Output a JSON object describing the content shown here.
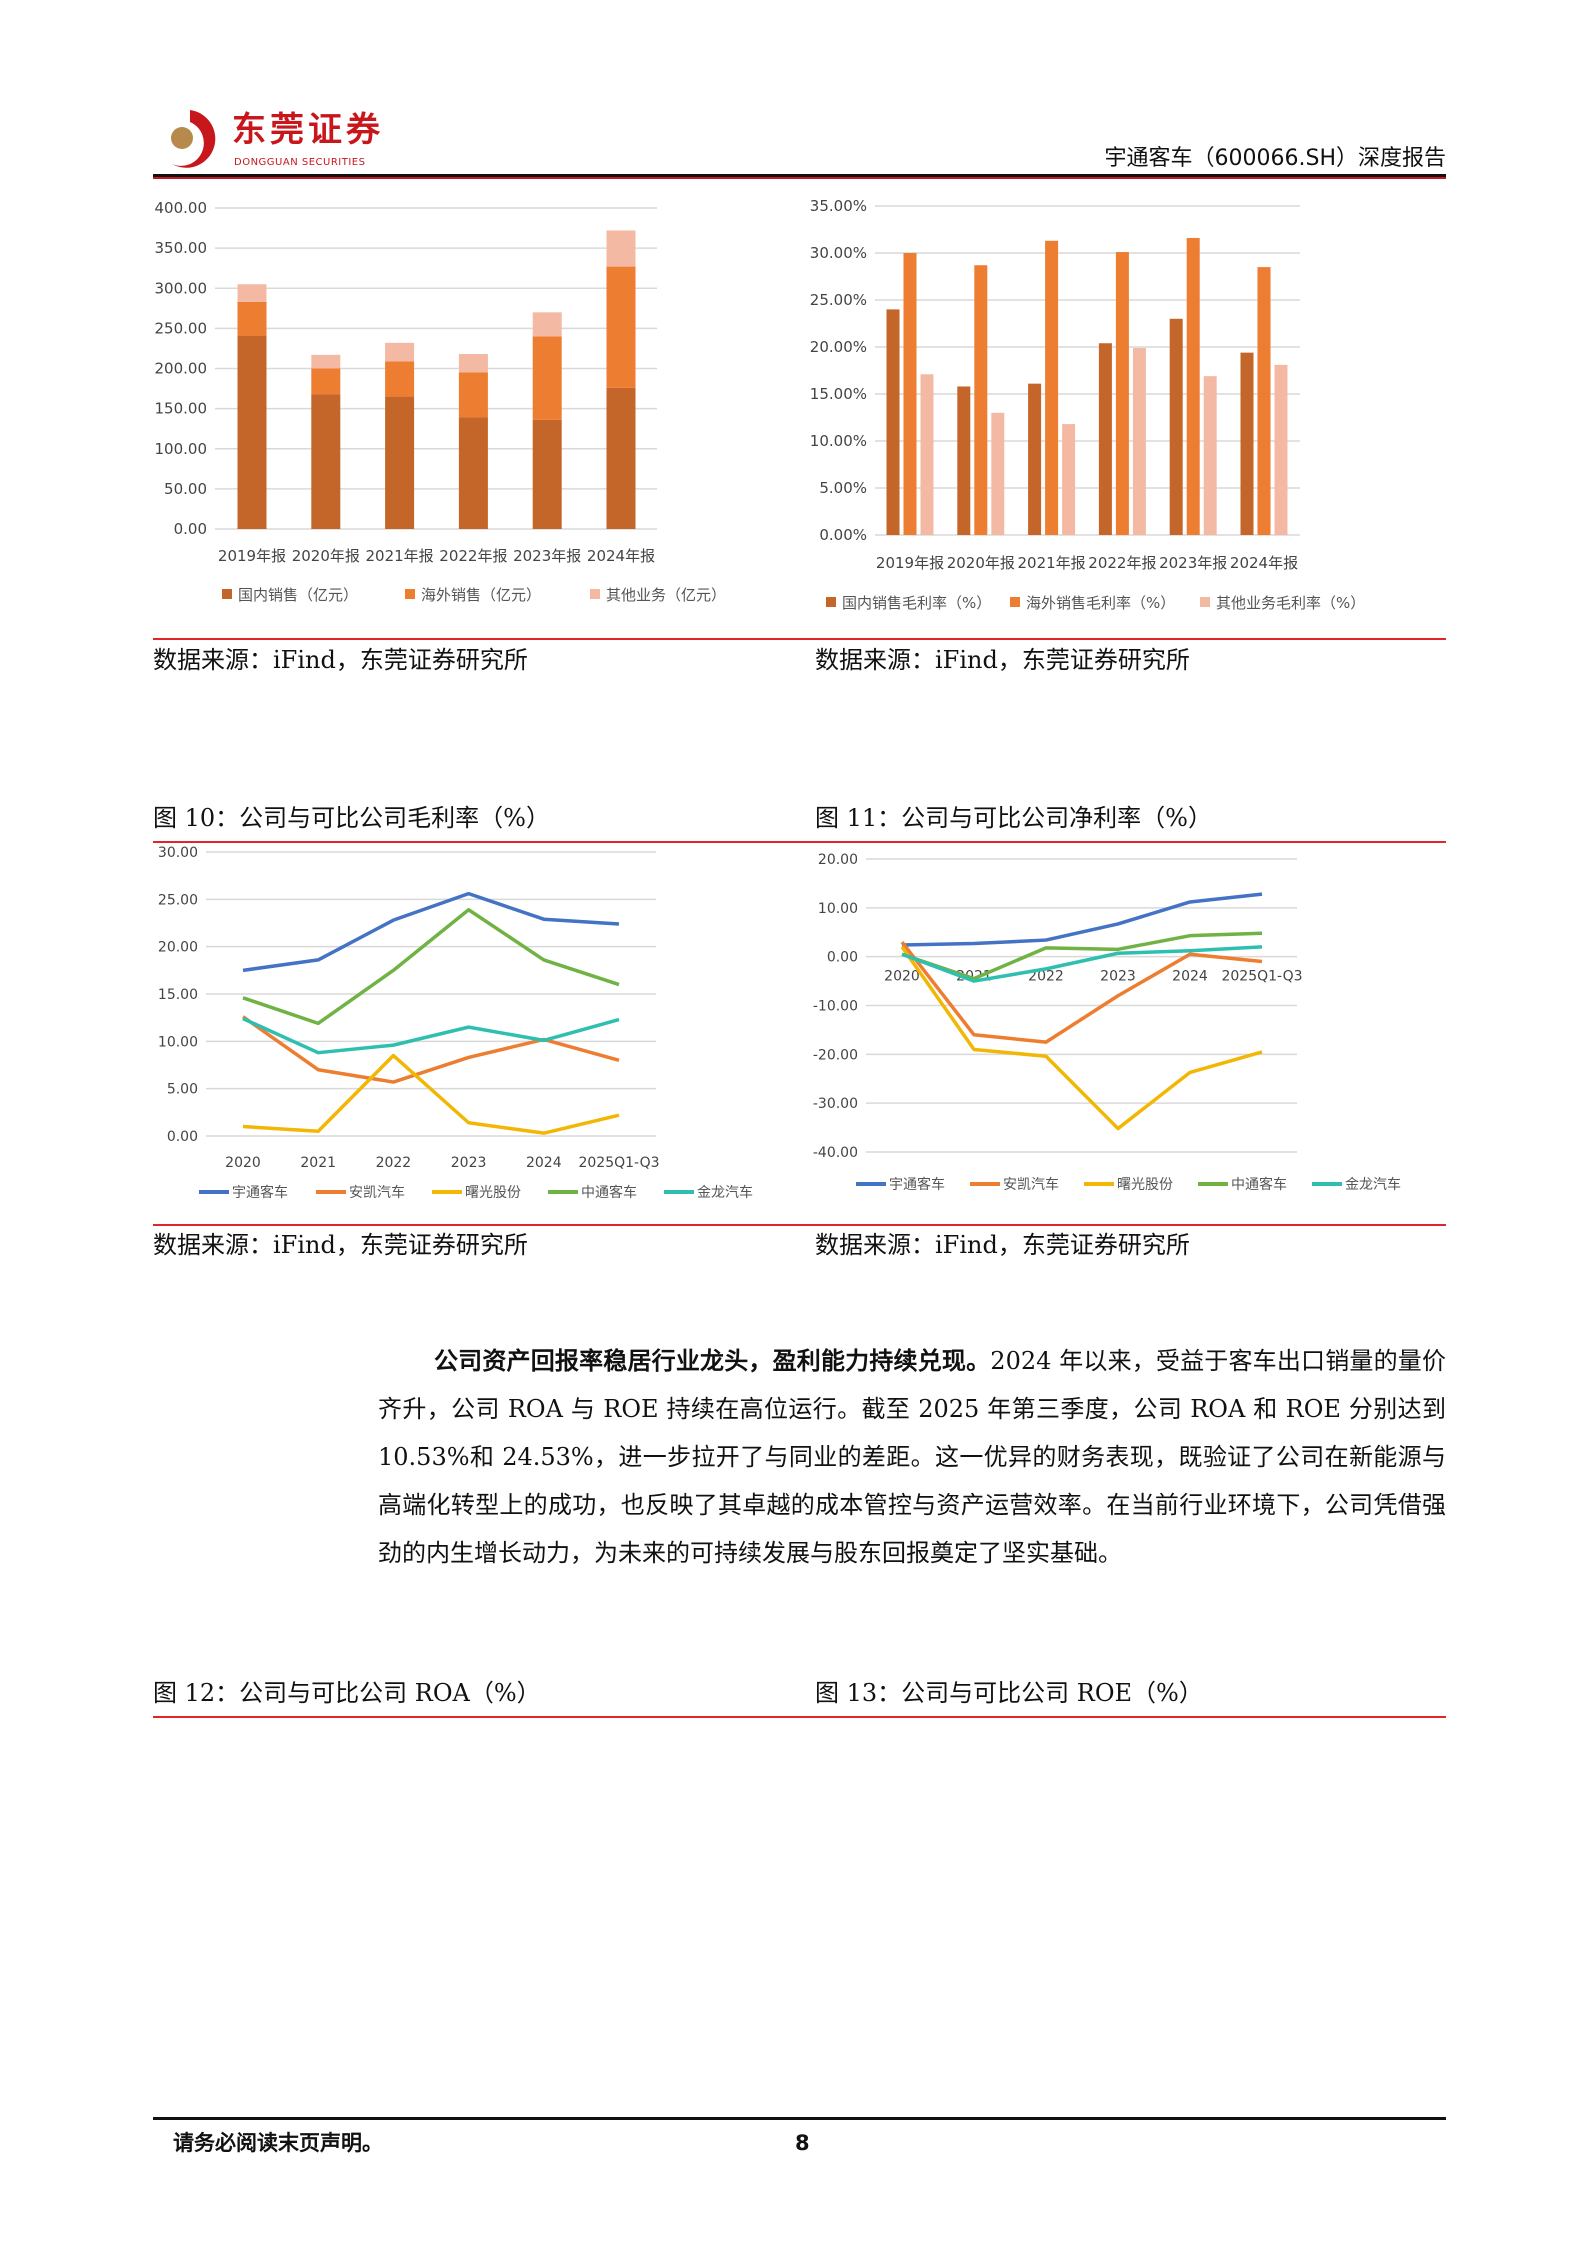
{
  "header": {
    "logo_cn": "东莞证券",
    "logo_en": "DONGGUAN SECURITIES",
    "report_title": "宇通客车（600066.SH）深度报告",
    "brand_color": "#c8161d"
  },
  "sources": {
    "left_top": "数据来源：iFind，东莞证券研究所",
    "right_top": "数据来源：iFind，东莞证券研究所",
    "left_mid": "数据来源：iFind，东莞证券研究所",
    "right_mid": "数据来源：iFind，东莞证券研究所"
  },
  "captions": {
    "fig10": "图 10：公司与可比公司毛利率（%）",
    "fig11": "图 11：公司与可比公司净利率（%）",
    "fig12": "图 12：公司与可比公司 ROA（%）",
    "fig13": "图 13：公司与可比公司 ROE（%）"
  },
  "paragraph": {
    "bold": "公司资产回报率稳居行业龙头，盈利能力持续兑现。",
    "text": "2024 年以来，受益于客车出口销量的量价齐升，公司 ROA 与 ROE 持续在高位运行。截至 2025 年第三季度，公司 ROA 和 ROE 分别达到 10.53%和 24.53%，进一步拉开了与同业的差距。这一优异的财务表现，既验证了公司在新能源与高端化转型上的成功，也反映了其卓越的成本管控与资产运营效率。在当前行业环境下，公司凭借强劲的内生增长动力，为未来的可持续发展与股东回报奠定了坚实基础。"
  },
  "footer": {
    "note": "请务必阅读末页声明。",
    "page": "8"
  },
  "chart_data": [
    {
      "type": "bar",
      "stacked": true,
      "categories": [
        "2019年报",
        "2020年报",
        "2021年报",
        "2022年报",
        "2023年报",
        "2024年报"
      ],
      "yticks": [
        "0.00",
        "50.00",
        "100.00",
        "150.00",
        "200.00",
        "250.00",
        "300.00",
        "350.00",
        "400.00"
      ],
      "ylim": [
        0,
        400
      ],
      "grid": true,
      "legend": "bottom",
      "series": [
        {
          "name": "国内销售（亿元）",
          "color": "#c4652a",
          "values": [
            241,
            168,
            165,
            139,
            136,
            176
          ]
        },
        {
          "name": "海外销售（亿元）",
          "color": "#ed7d31",
          "values": [
            42,
            32,
            44,
            56,
            104,
            151
          ]
        },
        {
          "name": "其他业务（亿元）",
          "color": "#f4b9a2",
          "values": [
            22,
            17,
            23,
            23,
            30,
            45
          ]
        }
      ]
    },
    {
      "type": "bar",
      "stacked": false,
      "categories": [
        "2019年报",
        "2020年报",
        "2021年报",
        "2022年报",
        "2023年报",
        "2024年报"
      ],
      "yticks": [
        "0.00%",
        "5.00%",
        "10.00%",
        "15.00%",
        "20.00%",
        "25.00%",
        "30.00%",
        "35.00%"
      ],
      "ylim": [
        0,
        35
      ],
      "grid": true,
      "legend": "bottom",
      "series": [
        {
          "name": "国内销售毛利率（%）",
          "color": "#c4652a",
          "values": [
            24.0,
            15.8,
            16.1,
            20.4,
            23.0,
            19.4
          ]
        },
        {
          "name": "海外销售毛利率（%）",
          "color": "#ed7d31",
          "values": [
            30.0,
            28.7,
            31.3,
            30.1,
            31.6,
            28.5
          ]
        },
        {
          "name": "其他业务毛利率（%）",
          "color": "#f4b9a2",
          "values": [
            17.1,
            13.0,
            11.8,
            19.9,
            16.9,
            18.1
          ]
        }
      ]
    },
    {
      "type": "line",
      "categories": [
        "2020",
        "2021",
        "2022",
        "2023",
        "2024",
        "2025Q1-Q3"
      ],
      "yticks": [
        "0.00",
        "5.00",
        "10.00",
        "15.00",
        "20.00",
        "25.00",
        "30.00"
      ],
      "ylim": [
        0,
        30
      ],
      "grid": true,
      "legend": "bottom",
      "series": [
        {
          "name": "宇通客车",
          "color": "#4472c4",
          "values": [
            17.5,
            18.6,
            22.8,
            25.6,
            22.9,
            22.4
          ]
        },
        {
          "name": "安凯汽车",
          "color": "#ed7d31",
          "values": [
            12.6,
            7.0,
            5.7,
            8.3,
            10.2,
            8.0
          ]
        },
        {
          "name": "曙光股份",
          "color": "#f2b705",
          "values": [
            1.0,
            0.5,
            8.5,
            1.4,
            0.3,
            2.2
          ]
        },
        {
          "name": "中通客车",
          "color": "#70b244",
          "values": [
            14.6,
            11.9,
            17.5,
            23.9,
            18.6,
            16.0
          ]
        },
        {
          "name": "金龙汽车",
          "color": "#2fbfb0",
          "values": [
            12.4,
            8.8,
            9.6,
            11.5,
            10.1,
            12.3
          ]
        }
      ]
    },
    {
      "type": "line",
      "categories": [
        "2020",
        "2021",
        "2022",
        "2023",
        "2024",
        "2025Q1-Q3"
      ],
      "yticks": [
        "-40.00",
        "-30.00",
        "-20.00",
        "-10.00",
        "0.00",
        "10.00",
        "20.00"
      ],
      "ylim": [
        -40,
        20
      ],
      "grid": true,
      "legend": "bottom",
      "series": [
        {
          "name": "宇通客车",
          "color": "#4472c4",
          "values": [
            2.4,
            2.7,
            3.4,
            6.7,
            11.2,
            12.8
          ]
        },
        {
          "name": "安凯汽车",
          "color": "#ed7d31",
          "values": [
            3.0,
            -16.0,
            -17.5,
            -8.0,
            0.5,
            -1.0
          ]
        },
        {
          "name": "曙光股份",
          "color": "#f2b705",
          "values": [
            2.0,
            -19.0,
            -20.4,
            -35.2,
            -23.7,
            -19.5
          ]
        },
        {
          "name": "中通客车",
          "color": "#70b244",
          "values": [
            0.5,
            -4.5,
            1.8,
            1.5,
            4.3,
            4.8
          ]
        },
        {
          "name": "金龙汽车",
          "color": "#2fbfb0",
          "values": [
            0.5,
            -5.0,
            -2.5,
            0.7,
            1.2,
            2.0
          ]
        }
      ]
    }
  ]
}
